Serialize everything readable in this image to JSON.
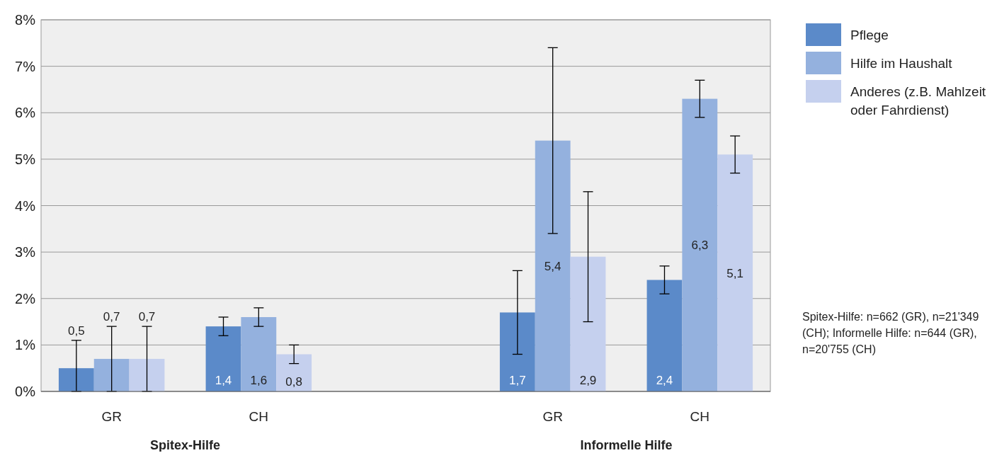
{
  "chart_data": {
    "type": "bar",
    "categories": [
      "GR",
      "CH",
      null,
      "GR",
      "CH"
    ],
    "series": [
      {
        "name": "Pflege",
        "color": "#5b8ac9",
        "values": [
          0.5,
          1.4,
          null,
          1.7,
          2.4
        ],
        "errors": [
          [
            0,
            1.1
          ],
          [
            1.2,
            1.6
          ],
          null,
          [
            0.8,
            2.6
          ],
          [
            2.1,
            2.7
          ]
        ],
        "value_labels": [
          "0,5",
          "1,4",
          null,
          "1,7",
          "2,4"
        ]
      },
      {
        "name": "Hilfe im Haushalt",
        "color": "#94b1de",
        "values": [
          0.7,
          1.6,
          null,
          5.4,
          6.3
        ],
        "errors": [
          [
            0,
            1.4
          ],
          [
            1.4,
            1.8
          ],
          null,
          [
            3.4,
            7.4
          ],
          [
            5.9,
            6.7
          ]
        ],
        "value_labels": [
          "0,7",
          "1,6",
          null,
          "5,4",
          "6,3"
        ]
      },
      {
        "name": "Anderes (z.B. Mahlzeit oder Fahrdienst)",
        "color": "#c5d0ee",
        "values": [
          0.7,
          0.8,
          null,
          2.9,
          5.1
        ],
        "errors": [
          [
            0,
            1.4
          ],
          [
            0.6,
            1.0
          ],
          null,
          [
            1.5,
            4.3
          ],
          [
            4.7,
            5.5
          ]
        ],
        "value_labels": [
          "0,7",
          "0,8",
          null,
          "2,9",
          "5,1"
        ]
      }
    ],
    "ylim": [
      0,
      8
    ],
    "yticks": [
      {
        "value": 0,
        "label": "0%"
      },
      {
        "value": 1,
        "label": "1%"
      },
      {
        "value": 2,
        "label": "2%"
      },
      {
        "value": 3,
        "label": "3%"
      },
      {
        "value": 4,
        "label": "4%"
      },
      {
        "value": 5,
        "label": "5%"
      },
      {
        "value": 6,
        "label": "6%"
      },
      {
        "value": 7,
        "label": "7%"
      },
      {
        "value": 8,
        "label": "8%"
      }
    ],
    "grid": "y",
    "legend": "top right",
    "annotations": [
      "Spitex-Hilfe",
      "Informelle Hilfe",
      "Spitex-Hilfe: n=662 (GR), n=21'349 (CH); Informelle Hilfe: n=644 (GR), n=20'755 (CH)"
    ]
  }
}
